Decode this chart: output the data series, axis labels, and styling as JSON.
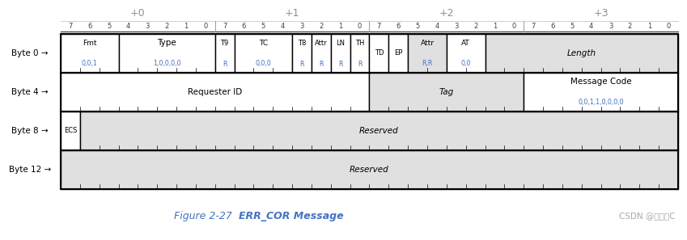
{
  "bg_color": "#ffffff",
  "cell_bg_white": "#ffffff",
  "cell_bg_gray": "#e0e0e0",
  "text_color_black": "#000000",
  "text_color_blue": "#4472c4",
  "text_color_gray": "#909090",
  "col_offsets": [
    "+0",
    "+1",
    "+2",
    "+3"
  ],
  "bit_numbers": [
    "7",
    "6",
    "5",
    "4",
    "3",
    "2",
    "1",
    "0",
    "7",
    "6",
    "5",
    "4",
    "3",
    "2",
    "1",
    "0",
    "7",
    "6",
    "5",
    "4",
    "3",
    "2",
    "1",
    "0",
    "7",
    "6",
    "5",
    "4",
    "3",
    "2",
    "1",
    "0"
  ],
  "byte_labels": [
    "Byte 0 →",
    "Byte 4 →",
    "Byte 8 →",
    "Byte 12 →"
  ],
  "fields_row0": [
    [
      0,
      2,
      "Fmt",
      "0,0,1",
      "white"
    ],
    [
      3,
      7,
      "Type",
      "1,0,0,0,0",
      "white"
    ],
    [
      8,
      8,
      "T9",
      "R",
      "white"
    ],
    [
      9,
      11,
      "TC",
      "0,0,0",
      "white"
    ],
    [
      12,
      12,
      "T8",
      "R",
      "white"
    ],
    [
      13,
      13,
      "Attr",
      "R",
      "white"
    ],
    [
      14,
      14,
      "LN",
      "R",
      "white"
    ],
    [
      15,
      15,
      "TH",
      "R",
      "white"
    ],
    [
      16,
      16,
      "TD",
      "",
      "white"
    ],
    [
      17,
      17,
      "EP",
      "",
      "white"
    ],
    [
      18,
      19,
      "Attr",
      "R,R",
      "gray"
    ],
    [
      20,
      21,
      "AT",
      "0,0",
      "white"
    ],
    [
      22,
      31,
      "Length",
      "",
      "gray"
    ]
  ],
  "fields_row1": [
    [
      0,
      15,
      "Requester ID",
      "",
      "white"
    ],
    [
      16,
      23,
      "Tag",
      "",
      "gray"
    ],
    [
      24,
      31,
      "Message Code",
      "0,0,1,1,0,0,0,0",
      "white"
    ]
  ],
  "fields_row2": [
    [
      0,
      0,
      "ECS",
      "",
      "white"
    ],
    [
      1,
      31,
      "Reserved",
      "",
      "gray"
    ]
  ],
  "fields_row3": [
    [
      0,
      31,
      "Reserved",
      "",
      "gray"
    ]
  ],
  "caption_text1": "Figure 2-27  ",
  "caption_text2": "ERR_COR Message",
  "watermark": "CSDN @天才小C"
}
